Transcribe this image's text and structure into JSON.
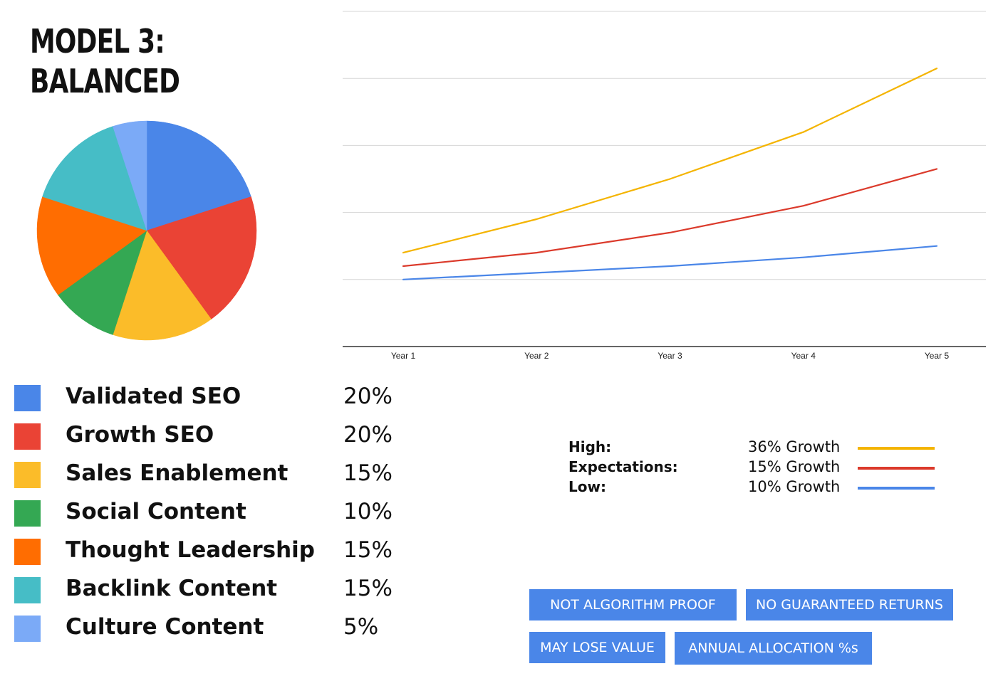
{
  "header": {
    "title_line1": "MODEL 3:",
    "title_line2": "BALANCED"
  },
  "chart_data": [
    {
      "type": "pie",
      "slices": [
        {
          "name": "Validated SEO",
          "value": 20,
          "label": "20%",
          "color": "#4a86e8"
        },
        {
          "name": "Growth SEO",
          "value": 20,
          "label": "20%",
          "color": "#ea4335"
        },
        {
          "name": "Sales Enablement",
          "value": 15,
          "label": "15%",
          "color": "#fbbc29"
        },
        {
          "name": "Social Content",
          "value": 10,
          "label": "10%",
          "color": "#34a853"
        },
        {
          "name": "Thought Leadership",
          "value": 15,
          "label": "15%",
          "color": "#ff6d01"
        },
        {
          "name": "Backlink Content",
          "value": 15,
          "label": "15%",
          "color": "#46bdc6"
        },
        {
          "name": "Culture Content",
          "value": 5,
          "label": "5%",
          "color": "#7baaf7"
        }
      ]
    },
    {
      "type": "line",
      "categories": [
        "Year 1",
        "Year 2",
        "Year 3",
        "Year 4",
        "Year 5"
      ],
      "ylim": [
        0,
        5
      ],
      "grid": true,
      "series": [
        {
          "name": "High",
          "color": "#f4b400",
          "values": [
            1.4,
            1.9,
            2.5,
            3.2,
            4.15
          ]
        },
        {
          "name": "Expectations",
          "color": "#db3a2b",
          "values": [
            1.2,
            1.4,
            1.7,
            2.1,
            2.65
          ]
        },
        {
          "name": "Low",
          "color": "#4a86e8",
          "values": [
            1.0,
            1.1,
            1.2,
            1.33,
            1.5
          ]
        }
      ]
    }
  ],
  "line_key": [
    {
      "label": "High:",
      "value": "36% Growth",
      "color": "#f4b400"
    },
    {
      "label": "Expectations:",
      "value": "15% Growth",
      "color": "#db3a2b"
    },
    {
      "label": "Low:",
      "value": "10% Growth",
      "color": "#4a86e8"
    }
  ],
  "buttons": {
    "not_algorithm_proof": "NOT ALGORITHM PROOF",
    "no_guaranteed_returns": "NO GUARANTEED RETURNS",
    "may_lose_value": "MAY LOSE VALUE",
    "annual_allocation": "ANNUAL ALLOCATION %s"
  }
}
